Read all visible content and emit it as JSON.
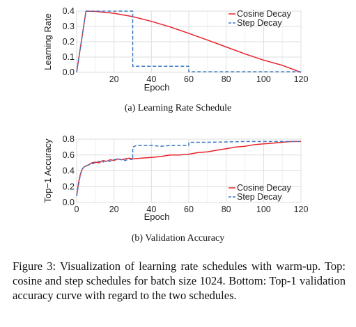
{
  "chart_data": [
    {
      "type": "line",
      "caption": "(a) Learning Rate Schedule",
      "xlabel": "Epoch",
      "ylabel": "Learning Rate",
      "xlim": [
        0,
        120
      ],
      "ylim": [
        0,
        0.4
      ],
      "xticks": [
        "20",
        "40",
        "60",
        "80",
        "100",
        "120"
      ],
      "yticks": [
        "0.0",
        "0.1",
        "0.2",
        "0.3",
        "0.4"
      ],
      "grid": true,
      "legend": "top-right",
      "series": [
        {
          "name": "Cosine Decay",
          "color": "#e8222b",
          "dash": "solid",
          "x": [
            0,
            5,
            10,
            20,
            30,
            40,
            50,
            60,
            70,
            80,
            90,
            100,
            110,
            120
          ],
          "y": [
            0.0,
            0.4,
            0.398,
            0.386,
            0.364,
            0.333,
            0.297,
            0.255,
            0.211,
            0.166,
            0.121,
            0.08,
            0.046,
            0.0
          ]
        },
        {
          "name": "Step Decay",
          "color": "#3a78c2",
          "dash": "dashed",
          "x": [
            0,
            5,
            30,
            30,
            60,
            60,
            120
          ],
          "y": [
            0.0,
            0.4,
            0.4,
            0.04,
            0.04,
            0.004,
            0.004
          ]
        }
      ]
    },
    {
      "type": "line",
      "caption": "(b) Validation Accuracy",
      "xlabel": "Epoch",
      "ylabel": "Top−1 Accuracy",
      "xlim": [
        0,
        120
      ],
      "ylim": [
        0,
        0.8
      ],
      "xticks": [
        "0",
        "20",
        "40",
        "60",
        "80",
        "100",
        "120"
      ],
      "yticks": [
        "0.0",
        "0.2",
        "0.4",
        "0.6",
        "0.8"
      ],
      "grid": true,
      "legend": "bottom-right",
      "series": [
        {
          "name": "Cosine Decay",
          "color": "#e8222b",
          "dash": "solid",
          "x": [
            0,
            1,
            2,
            3,
            4,
            6,
            8,
            10,
            12,
            14,
            16,
            18,
            20,
            22,
            24,
            26,
            28,
            30,
            35,
            40,
            45,
            50,
            55,
            60,
            65,
            70,
            75,
            80,
            85,
            90,
            95,
            100,
            105,
            110,
            115,
            120
          ],
          "y": [
            0.08,
            0.25,
            0.36,
            0.42,
            0.45,
            0.47,
            0.5,
            0.51,
            0.5,
            0.53,
            0.52,
            0.54,
            0.53,
            0.55,
            0.54,
            0.55,
            0.56,
            0.55,
            0.56,
            0.57,
            0.58,
            0.6,
            0.6,
            0.61,
            0.63,
            0.64,
            0.66,
            0.68,
            0.7,
            0.71,
            0.73,
            0.74,
            0.75,
            0.76,
            0.77,
            0.77
          ]
        },
        {
          "name": "Step Decay",
          "color": "#3a78c2",
          "dash": "dashed",
          "x": [
            0,
            1,
            2,
            3,
            4,
            6,
            8,
            10,
            12,
            14,
            16,
            18,
            20,
            22,
            24,
            26,
            28,
            30,
            30,
            32,
            35,
            40,
            45,
            50,
            55,
            60,
            60,
            65,
            70,
            80,
            90,
            100,
            110,
            120
          ],
          "y": [
            0.08,
            0.22,
            0.35,
            0.42,
            0.45,
            0.47,
            0.49,
            0.5,
            0.52,
            0.51,
            0.53,
            0.52,
            0.54,
            0.55,
            0.54,
            0.53,
            0.55,
            0.54,
            0.7,
            0.72,
            0.72,
            0.72,
            0.71,
            0.72,
            0.72,
            0.72,
            0.76,
            0.76,
            0.76,
            0.765,
            0.77,
            0.77,
            0.77,
            0.77
          ]
        }
      ]
    }
  ],
  "figure_caption": "Figure 3:  Visualization of learning rate schedules with warm-up.  Top:  cosine and step schedules for batch size 1024. Bottom: Top-1 validation accuracy curve with regard to the two schedules."
}
